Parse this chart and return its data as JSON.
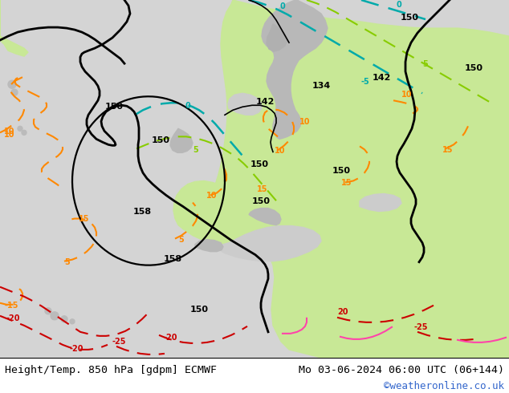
{
  "title_left": "Height/Temp. 850 hPa [gdpm] ECMWF",
  "title_right": "Mo 03-06-2024 06:00 UTC (06+144)",
  "copyright": "©weatheronline.co.uk",
  "sea_color": "#d8d8d8",
  "land_color": "#cceeaa",
  "mountain_color": "#aaaaaa",
  "footer_text_color": "#000000",
  "copyright_color": "#3366cc",
  "figsize": [
    6.34,
    4.9
  ],
  "dpi": 100
}
